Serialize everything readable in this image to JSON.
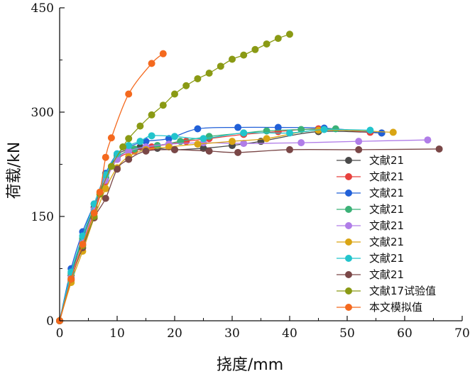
{
  "chart_data": {
    "type": "scatter",
    "title": "",
    "xlabel": "挠度/mm",
    "ylabel": "荷载/kN",
    "xlim": [
      0,
      70
    ],
    "ylim": [
      0,
      450
    ],
    "xticks": [
      0,
      10,
      20,
      30,
      40,
      50,
      60,
      70
    ],
    "yticks": [
      0,
      150,
      300,
      450
    ],
    "legend_position": "center-right",
    "series": [
      {
        "name": "文献21",
        "color": "#4a4a4a",
        "x": [
          0,
          2,
          4,
          6,
          8,
          10,
          12,
          14,
          17,
          20,
          25,
          30,
          35,
          45,
          56
        ],
        "y": [
          0,
          65,
          118,
          163,
          206,
          238,
          246,
          250,
          248,
          246,
          248,
          252,
          258,
          272,
          270
        ]
      },
      {
        "name": "文献21",
        "color": "#e8413d",
        "x": [
          0,
          2,
          4,
          6,
          8,
          10,
          13,
          16,
          19,
          22,
          26,
          32,
          38,
          45,
          54
        ],
        "y": [
          0,
          58,
          110,
          155,
          200,
          232,
          244,
          250,
          254,
          258,
          262,
          268,
          272,
          276,
          271
        ]
      },
      {
        "name": "文献21",
        "color": "#2160d8",
        "x": [
          0,
          2,
          4,
          6,
          8,
          10,
          12,
          15,
          19,
          24,
          31,
          38,
          46,
          56
        ],
        "y": [
          0,
          75,
          128,
          168,
          212,
          240,
          250,
          258,
          262,
          276,
          278,
          278,
          277,
          270
        ]
      },
      {
        "name": "文献21",
        "color": "#3bb177",
        "x": [
          0,
          2,
          4,
          6,
          8,
          10,
          13,
          17,
          21,
          26,
          32,
          36,
          42,
          48
        ],
        "y": [
          0,
          68,
          118,
          160,
          205,
          235,
          247,
          252,
          258,
          265,
          270,
          273,
          275,
          276
        ]
      },
      {
        "name": "文献21",
        "color": "#b07de8",
        "x": [
          0,
          2,
          4,
          6,
          8,
          10,
          12,
          15,
          19,
          25,
          32,
          42,
          52,
          64
        ],
        "y": [
          0,
          62,
          112,
          160,
          202,
          232,
          244,
          250,
          254,
          256,
          255,
          256,
          258,
          260
        ]
      },
      {
        "name": "文献21",
        "color": "#d9a514",
        "x": [
          0,
          2,
          4,
          6,
          8,
          10,
          12,
          15,
          19,
          24,
          30,
          36,
          45,
          58
        ],
        "y": [
          0,
          55,
          100,
          148,
          190,
          220,
          236,
          246,
          250,
          254,
          258,
          262,
          274,
          271
        ]
      },
      {
        "name": "文献21",
        "color": "#22c4cc",
        "x": [
          0,
          2,
          4,
          6,
          8,
          10,
          12,
          14,
          16,
          20,
          25,
          32,
          40,
          46,
          54
        ],
        "y": [
          0,
          70,
          122,
          168,
          210,
          240,
          252,
          258,
          266,
          265,
          262,
          270,
          270,
          275,
          274
        ]
      },
      {
        "name": "文献21",
        "color": "#7a4747",
        "x": [
          0,
          2,
          4,
          6,
          8,
          10,
          12,
          15,
          20,
          26,
          31,
          40,
          52,
          66
        ],
        "y": [
          0,
          60,
          105,
          148,
          176,
          218,
          232,
          244,
          246,
          244,
          242,
          246,
          246,
          247
        ]
      },
      {
        "name": "文献17试验值",
        "color": "#8a9a14",
        "x": [
          0,
          2,
          4,
          6,
          7,
          9,
          11,
          12,
          14,
          16,
          18,
          20,
          22,
          24,
          26,
          28,
          30,
          32,
          34,
          36,
          38,
          40
        ],
        "y": [
          0,
          60,
          108,
          150,
          182,
          222,
          250,
          262,
          280,
          296,
          310,
          326,
          338,
          348,
          356,
          366,
          376,
          382,
          390,
          398,
          406,
          412
        ]
      },
      {
        "name": "本文模拟值",
        "color": "#f4691e",
        "x": [
          0,
          2,
          4,
          6,
          7,
          8,
          9,
          12,
          16,
          18
        ],
        "y": [
          0,
          60,
          110,
          155,
          185,
          235,
          263,
          326,
          370,
          384
        ]
      }
    ]
  }
}
